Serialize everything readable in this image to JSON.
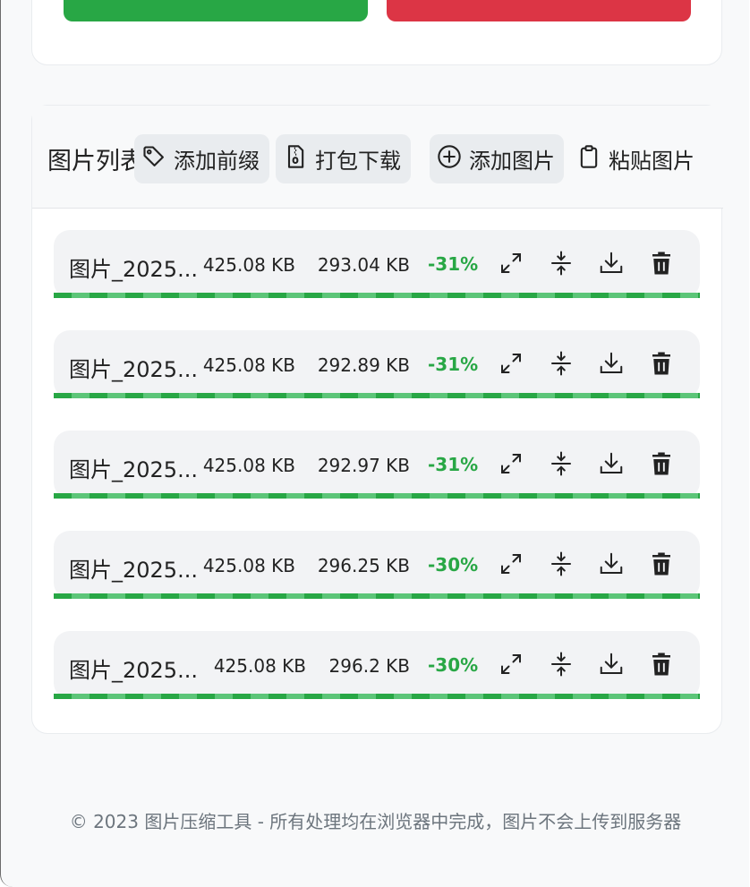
{
  "colors": {
    "accent_green": "#28a745",
    "danger_red": "#dc3545",
    "ratio_text": "#28a745"
  },
  "toolbar": {
    "title": "图片列表",
    "add_prefix_label": "添加前缀",
    "add_prefix_icon": "tag-icon",
    "download_zip_label": "打包下载",
    "download_zip_icon": "file-zip-icon",
    "add_image_label": "添加图片",
    "add_image_icon": "plus-circle-icon",
    "paste_image_label": "粘贴图片",
    "paste_image_icon": "clipboard-icon"
  },
  "images": [
    {
      "name": "图片_2025...",
      "original_size": "425.08 KB",
      "compressed_size": "293.04 KB",
      "ratio": "-31%",
      "progress": 1.0
    },
    {
      "name": "图片_2025...",
      "original_size": "425.08 KB",
      "compressed_size": "292.89 KB",
      "ratio": "-31%",
      "progress": 1.0
    },
    {
      "name": "图片_2025...",
      "original_size": "425.08 KB",
      "compressed_size": "292.97 KB",
      "ratio": "-31%",
      "progress": 1.0
    },
    {
      "name": "图片_2025...",
      "original_size": "425.08 KB",
      "compressed_size": "296.25 KB",
      "ratio": "-30%",
      "progress": 1.0
    },
    {
      "name": "图片_2025...",
      "original_size": "425.08 KB",
      "compressed_size": "296.2 KB",
      "ratio": "-30%",
      "progress": 1.0
    }
  ],
  "row_icons": [
    "expand-icon",
    "compress-icon",
    "download-icon",
    "trash-icon"
  ],
  "footer": {
    "text": "© 2023 图片压缩工具 - 所有处理均在浏览器中完成，图片不会上传到服务器"
  }
}
